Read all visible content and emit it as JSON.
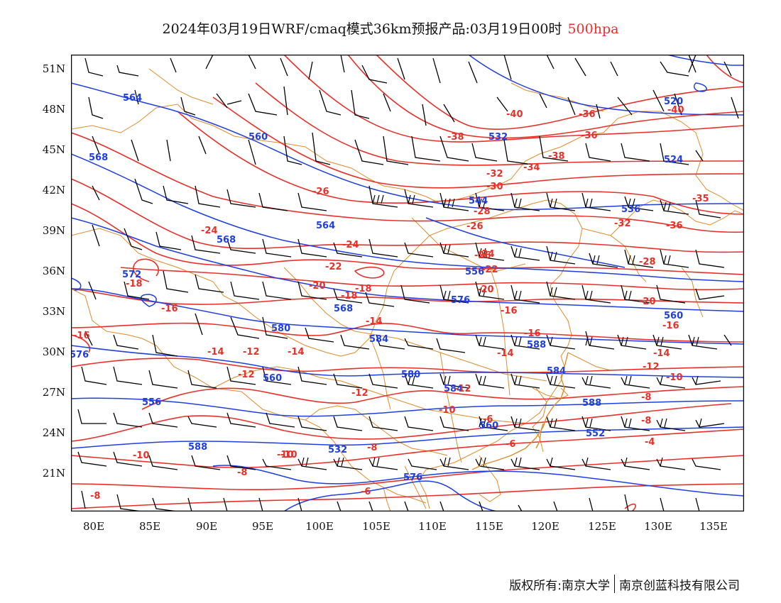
{
  "title": {
    "main": "2024年03月19日WRF/cmaq模式36km预报产品:03月19日00时",
    "level": "500hpa"
  },
  "colors": {
    "height": "#1f3fe0",
    "temperature": "#e8302a",
    "border": "#e08b2c",
    "wind": "#000000",
    "frame": "#000000"
  },
  "axes": {
    "lat_labels": [
      "51N",
      "48N",
      "45N",
      "42N",
      "39N",
      "36N",
      "33N",
      "30N",
      "27N",
      "24N",
      "21N"
    ],
    "lon_labels": [
      "80E",
      "85E",
      "90E",
      "95E",
      "100E",
      "105E",
      "110E",
      "115E",
      "120E",
      "125E",
      "130E",
      "135E"
    ]
  },
  "height_labels": [
    "564",
    "560",
    "568",
    "532",
    "520",
    "524",
    "544",
    "536",
    "564",
    "568",
    "572",
    "556",
    "568",
    "576",
    "560",
    "576",
    "580",
    "584",
    "588",
    "556",
    "560",
    "580",
    "584",
    "584",
    "588",
    "588",
    "560",
    "532",
    "552",
    "576"
  ],
  "temp_labels": [
    "-40",
    "-40",
    "-38",
    "-36",
    "-38",
    "-34",
    "-36",
    "-32",
    "-30",
    "-35",
    "-28",
    "-26",
    "-26",
    "-32",
    "-36",
    "-24",
    "-24",
    "-22",
    "-28",
    "-22",
    "-20",
    "-18",
    "-26",
    "-24",
    "-18",
    "-20",
    "-16",
    "-16",
    "-18",
    "-20",
    "-16",
    "-16",
    "-14",
    "-14",
    "-14",
    "-16",
    "-14",
    "-12",
    "-12",
    "-12",
    "-14",
    "-12",
    "-10",
    "-10",
    "-8",
    "-10",
    "-8",
    "-10",
    "-8",
    "-6",
    "-8",
    "-6",
    "-6",
    "-4",
    "-8",
    "-12",
    "-10"
  ],
  "footer": {
    "left": "版权所有:南京大学",
    "right": "南京创蓝科技有限公司"
  }
}
